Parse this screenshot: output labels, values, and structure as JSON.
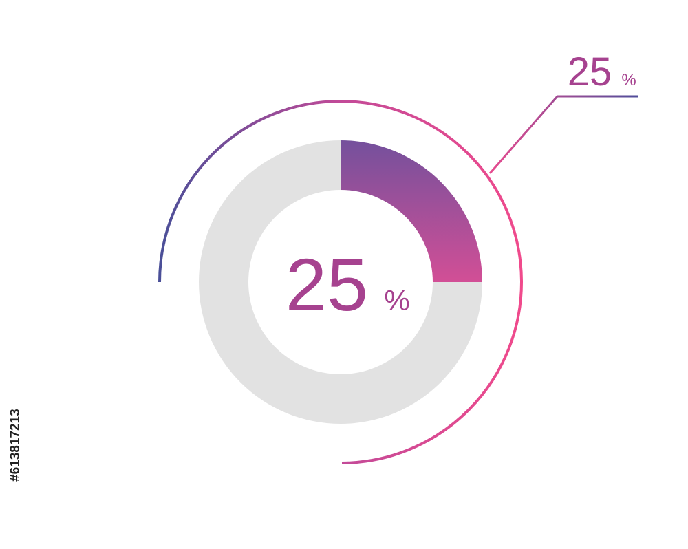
{
  "chart_data": {
    "type": "donut",
    "values": [
      25,
      75
    ],
    "unit": "%",
    "colors": [
      "url(#segGrad)",
      "#e2e2e2"
    ]
  },
  "image_id": "#613817213"
}
